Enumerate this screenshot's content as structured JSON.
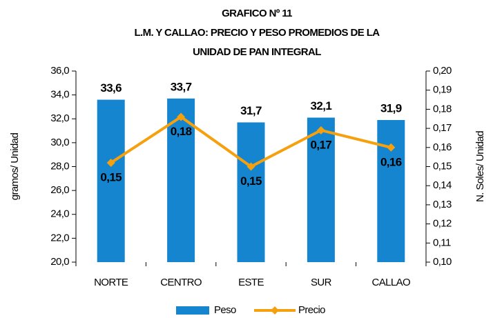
{
  "chart_data": {
    "type": "bar",
    "title": [
      "GRAFICO Nº 11",
      "L.M. Y CALLAO: PRECIO Y PESO PROMEDIOS DE LA",
      "UNIDAD DE PAN INTEGRAL"
    ],
    "categories": [
      "NORTE",
      "CENTRO",
      "ESTE",
      "SUR",
      "CALLAO"
    ],
    "ylabel": "gramos/ Unidad",
    "y2label": "N. Soles/ Unidad",
    "ylim": [
      20,
      36
    ],
    "yticks": [
      {
        "value": 20,
        "label": "20,0"
      },
      {
        "value": 22,
        "label": "22,0"
      },
      {
        "value": 24,
        "label": "24,0"
      },
      {
        "value": 26,
        "label": "26,0"
      },
      {
        "value": 28,
        "label": "28,0"
      },
      {
        "value": 30,
        "label": "30,0"
      },
      {
        "value": 32,
        "label": "32,0"
      },
      {
        "value": 34,
        "label": "34,0"
      },
      {
        "value": 36,
        "label": "36,0"
      }
    ],
    "y2lim": [
      0.1,
      0.2
    ],
    "y2ticks": [
      {
        "value": 0.1,
        "label": "0,10"
      },
      {
        "value": 0.11,
        "label": "0,11"
      },
      {
        "value": 0.12,
        "label": "0,12"
      },
      {
        "value": 0.13,
        "label": "0,13"
      },
      {
        "value": 0.14,
        "label": "0,14"
      },
      {
        "value": 0.15,
        "label": "0,15"
      },
      {
        "value": 0.16,
        "label": "0,16"
      },
      {
        "value": 0.17,
        "label": "0,17"
      },
      {
        "value": 0.18,
        "label": "0,18"
      },
      {
        "value": 0.19,
        "label": "0,19"
      },
      {
        "value": 0.2,
        "label": "0,20"
      }
    ],
    "series": [
      {
        "name": "Peso",
        "type": "bar",
        "color": "#1585d0",
        "values": [
          33.6,
          33.7,
          31.7,
          32.1,
          31.9
        ],
        "value_labels": [
          "33,6",
          "33,7",
          "31,7",
          "32,1",
          "31,9"
        ]
      },
      {
        "name": "Precio",
        "type": "line",
        "axis": "y2",
        "color": "#f5a00f",
        "values": [
          0.152,
          0.176,
          0.15,
          0.169,
          0.16
        ],
        "value_labels": [
          "0,15",
          "0,18",
          "0,15",
          "0,17",
          "0,16"
        ]
      }
    ]
  }
}
